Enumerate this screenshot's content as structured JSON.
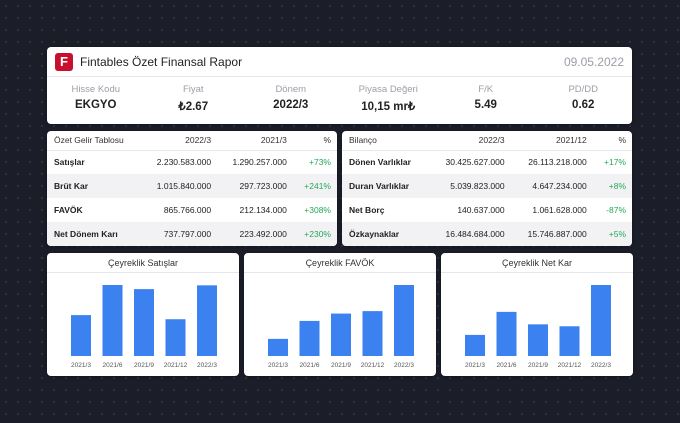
{
  "header": {
    "logo_letter": "F",
    "title": "Fintables Özet Finansal Rapor",
    "date": "09.05.2022",
    "brand_color": "#c8102e",
    "metrics": [
      {
        "label": "Hisse Kodu",
        "value": "EKGYO"
      },
      {
        "label": "Fiyat",
        "value": "₺2.67"
      },
      {
        "label": "Dönem",
        "value": "2022/3"
      },
      {
        "label": "Piyasa Değeri",
        "value": "10,15 mr₺"
      },
      {
        "label": "F/K",
        "value": "5.49"
      },
      {
        "label": "PD/DD",
        "value": "0.62"
      }
    ]
  },
  "income": {
    "headers": [
      "Özet Gelir Tablosu",
      "2022/3",
      "2021/3",
      "%"
    ],
    "rows": [
      {
        "name": "Satışlar",
        "a": "2.230.583.000",
        "b": "1.290.257.000",
        "pct": "+73%"
      },
      {
        "name": "Brüt Kar",
        "a": "1.015.840.000",
        "b": "297.723.000",
        "pct": "+241%"
      },
      {
        "name": "FAVÖK",
        "a": "865.766.000",
        "b": "212.134.000",
        "pct": "+308%"
      },
      {
        "name": "Net Dönem Karı",
        "a": "737.797.000",
        "b": "223.492.000",
        "pct": "+230%"
      }
    ]
  },
  "balance": {
    "headers": [
      "Bilanço",
      "2022/3",
      "2021/12",
      "%"
    ],
    "rows": [
      {
        "name": "Dönen Varlıklar",
        "a": "30.425.627.000",
        "b": "26.113.218.000",
        "pct": "+17%"
      },
      {
        "name": "Duran Varlıklar",
        "a": "5.039.823.000",
        "b": "4.647.234.000",
        "pct": "+8%"
      },
      {
        "name": "Net Borç",
        "a": "140.637.000",
        "b": "1.061.628.000",
        "pct": "-87%"
      },
      {
        "name": "Özkaynaklar",
        "a": "16.484.684.000",
        "b": "15.746.887.000",
        "pct": "+5%"
      }
    ]
  },
  "positive_color": "#22a85a",
  "bar_color": "#3b82f0",
  "chart_data": [
    {
      "type": "bar",
      "title": "Çeyreklik Satışlar",
      "categories": [
        "2021/3",
        "2021/6",
        "2021/9",
        "2021/12",
        "2022/3"
      ],
      "values": [
        1.29,
        2.24,
        2.11,
        1.16,
        2.23
      ]
    },
    {
      "type": "bar",
      "title": "Çeyreklik FAVÖK",
      "categories": [
        "2021/3",
        "2021/6",
        "2021/9",
        "2021/12",
        "2022/3"
      ],
      "values": [
        0.21,
        0.43,
        0.52,
        0.55,
        0.87
      ]
    },
    {
      "type": "bar",
      "title": "Çeyreklik Net Kar",
      "categories": [
        "2021/3",
        "2021/6",
        "2021/9",
        "2021/12",
        "2022/3"
      ],
      "values": [
        0.22,
        0.46,
        0.33,
        0.31,
        0.74
      ]
    }
  ]
}
